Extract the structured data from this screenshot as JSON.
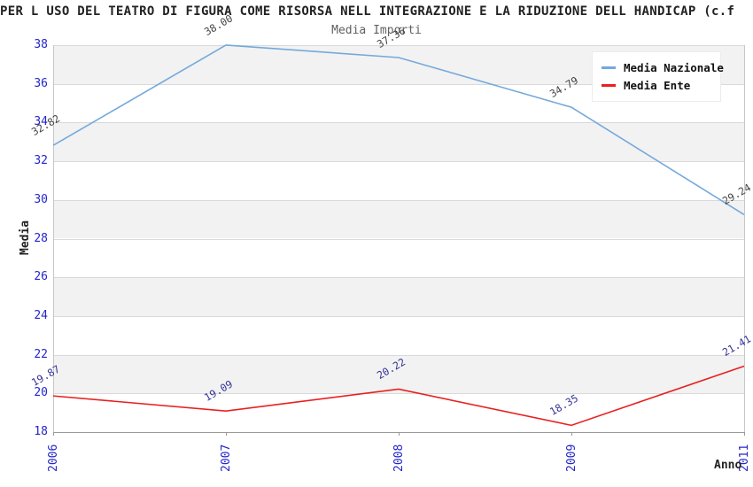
{
  "title": "PER L USO DEL TEATRO DI FIGURA COME RISORSA NELL INTEGRAZIONE E LA RIDUZIONE DELL HANDICAP (c.f",
  "subtitle": "Media Importi",
  "legend": {
    "items": [
      {
        "label": "Media Nazionale",
        "color": "#74a9dc"
      },
      {
        "label": "Media Ente",
        "color": "#e82020"
      }
    ]
  },
  "axes": {
    "y_title": "Media",
    "x_title": "Anno",
    "y_ticks": [
      "38",
      "36",
      "34",
      "32",
      "30",
      "28",
      "26",
      "24",
      "22",
      "20",
      "18"
    ],
    "x_ticks": [
      "2006",
      "2007",
      "2008",
      "2009",
      "2011"
    ]
  },
  "chart_data": {
    "type": "line",
    "title": "Media Importi",
    "x": [
      "2006",
      "2007",
      "2008",
      "2009",
      "2011"
    ],
    "series": [
      {
        "name": "Media Nazionale",
        "color": "#74a9dc",
        "label_color": "#444444",
        "values": [
          32.82,
          38.0,
          37.36,
          34.79,
          29.24
        ]
      },
      {
        "name": "Media Ente",
        "color": "#e82020",
        "label_color": "#333399",
        "values": [
          19.87,
          19.09,
          20.22,
          18.35,
          21.41
        ]
      }
    ],
    "xlabel": "Anno",
    "ylabel": "Media",
    "ylim": [
      18,
      38
    ],
    "ytick_step": 2,
    "grid": "horizontal-bands",
    "legend_position": "top-right"
  },
  "colors": {
    "band_gray": "#f2f2f2",
    "gridline": "#d9d9d9",
    "axis": "#999999",
    "tick_label": "#2424cc",
    "title": "#222222",
    "subtitle": "#606060"
  }
}
